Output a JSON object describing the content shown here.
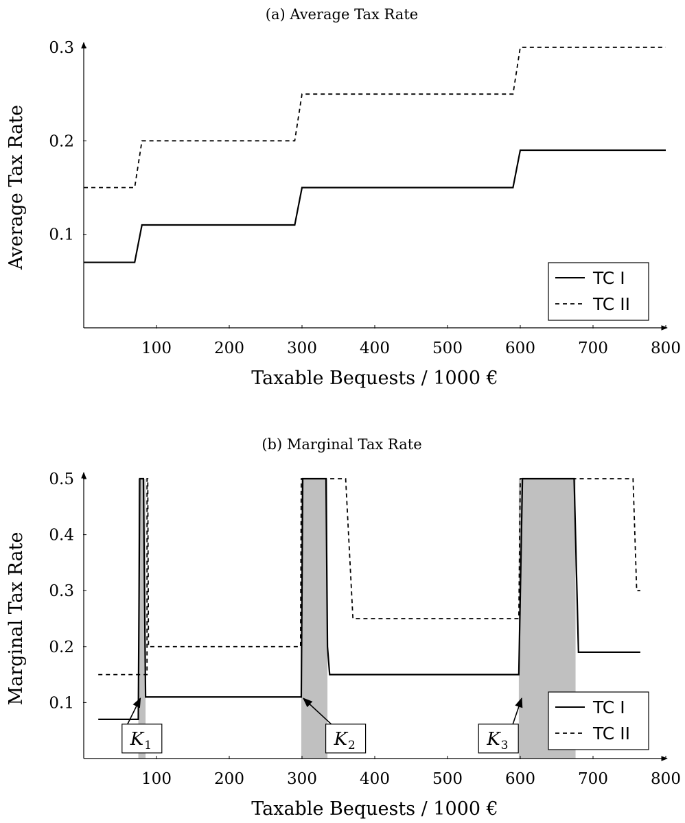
{
  "chart_data": [
    {
      "type": "line",
      "title": "(a) Average Tax Rate",
      "xlabel": "Taxable Bequests / 1000 €",
      "ylabel": "Average Tax Rate",
      "xlim": [
        0,
        800
      ],
      "ylim": [
        0,
        0.3
      ],
      "xticks": [
        100,
        200,
        300,
        400,
        500,
        600,
        700,
        800
      ],
      "xtick_labels": [
        "100",
        "200",
        "300",
        "400",
        "500",
        "600",
        "700",
        "800"
      ],
      "yticks": [
        0.1,
        0.2,
        0.3
      ],
      "ytick_labels": [
        "0.1",
        "0.2",
        "0.3"
      ],
      "grid": false,
      "legend": "bottom-right",
      "series": [
        {
          "name": "TC I",
          "style": "solid",
          "color": "#000000",
          "x": [
            0,
            70,
            80,
            290,
            300,
            590,
            600,
            800
          ],
          "y": [
            0.07,
            0.07,
            0.11,
            0.11,
            0.15,
            0.15,
            0.19,
            0.19
          ]
        },
        {
          "name": "TC II",
          "style": "dashed",
          "color": "#000000",
          "x": [
            0,
            70,
            80,
            290,
            300,
            590,
            600,
            800
          ],
          "y": [
            0.15,
            0.15,
            0.2,
            0.2,
            0.25,
            0.25,
            0.3,
            0.3
          ]
        }
      ]
    },
    {
      "type": "line",
      "title": "(b) Marginal Tax Rate",
      "xlabel": "Taxable Bequests / 1000 €",
      "ylabel": "Marginal Tax Rate",
      "xlim": [
        0,
        800
      ],
      "ylim": [
        0,
        0.5
      ],
      "xticks": [
        100,
        200,
        300,
        400,
        500,
        600,
        700,
        800
      ],
      "xtick_labels": [
        "100",
        "200",
        "300",
        "400",
        "500",
        "600",
        "700",
        "800"
      ],
      "yticks": [
        0.1,
        0.2,
        0.3,
        0.4,
        0.5
      ],
      "ytick_labels": [
        "0.1",
        "0.2",
        "0.3",
        "0.4",
        "0.5"
      ],
      "grid": false,
      "legend": "bottom-right",
      "shaded_regions": [
        {
          "x0": 75,
          "x1": 85,
          "color": "#c0c0c0"
        },
        {
          "x0": 299,
          "x1": 335,
          "color": "#c0c0c0"
        },
        {
          "x0": 598,
          "x1": 676,
          "color": "#c0c0c0"
        }
      ],
      "annotations": [
        {
          "label": "K",
          "subscript": "1",
          "arrow_to": [
            75,
            0.11
          ],
          "box_at": [
            80,
            0.01
          ]
        },
        {
          "label": "K",
          "subscript": "2",
          "arrow_to": [
            300,
            0.11
          ],
          "box_at": [
            360,
            0.01
          ]
        },
        {
          "label": "K",
          "subscript": "3",
          "arrow_to": [
            600,
            0.11
          ],
          "box_at": [
            570,
            0.01
          ]
        }
      ],
      "series": [
        {
          "name": "TC I",
          "style": "solid",
          "color": "#000000",
          "x": [
            20,
            75,
            77,
            82,
            85,
            299,
            301,
            333,
            335,
            338,
            598,
            603,
            674,
            680,
            765
          ],
          "y": [
            0.07,
            0.07,
            0.5,
            0.5,
            0.11,
            0.11,
            0.5,
            0.5,
            0.2,
            0.15,
            0.15,
            0.5,
            0.5,
            0.19,
            0.19
          ]
        },
        {
          "name": "TC II",
          "style": "dashed",
          "color": "#000000",
          "x": [
            20,
            75,
            87,
            87,
            88,
            89,
            298,
            299,
            360,
            370,
            598,
            600,
            755,
            760,
            765
          ],
          "y": [
            0.15,
            0.15,
            0.15,
            0.5,
            0.5,
            0.2,
            0.2,
            0.5,
            0.5,
            0.25,
            0.25,
            0.5,
            0.5,
            0.3,
            0.3
          ]
        }
      ]
    }
  ]
}
